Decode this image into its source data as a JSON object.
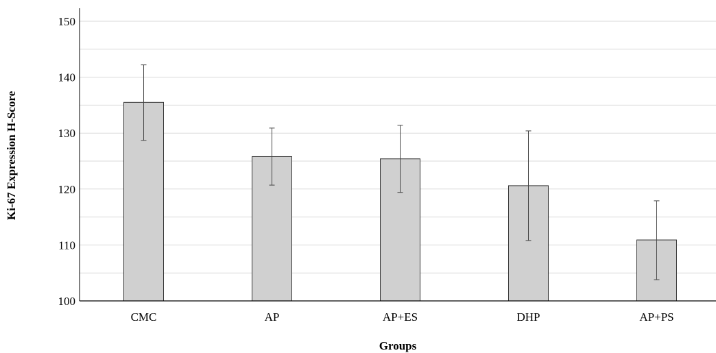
{
  "chart_data": {
    "type": "bar",
    "title": "",
    "xlabel": "Groups",
    "ylabel": "Ki-67 Expression H-Score",
    "categories": [
      "CMC",
      "AP",
      "AP+ES",
      "DHP",
      "AP+PS"
    ],
    "values": [
      135.5,
      125.8,
      125.4,
      120.6,
      110.9
    ],
    "error_bars": {
      "upper": [
        142.2,
        130.9,
        131.4,
        130.4,
        117.9
      ],
      "lower": [
        128.7,
        120.7,
        119.4,
        110.8,
        103.8
      ]
    },
    "ylim": [
      100,
      152
    ],
    "yticks": [
      100,
      110,
      120,
      130,
      140,
      150
    ],
    "gridlines": [
      100,
      105,
      110,
      115,
      120,
      125,
      130,
      135,
      140,
      145,
      150
    ],
    "grid": true,
    "legend": "none",
    "colors": {
      "bar_fill": "#d0d0d0",
      "bar_stroke": "#333333",
      "grid": "#d9d9d9",
      "axis": "#000000",
      "error_bar": "#444444"
    }
  }
}
